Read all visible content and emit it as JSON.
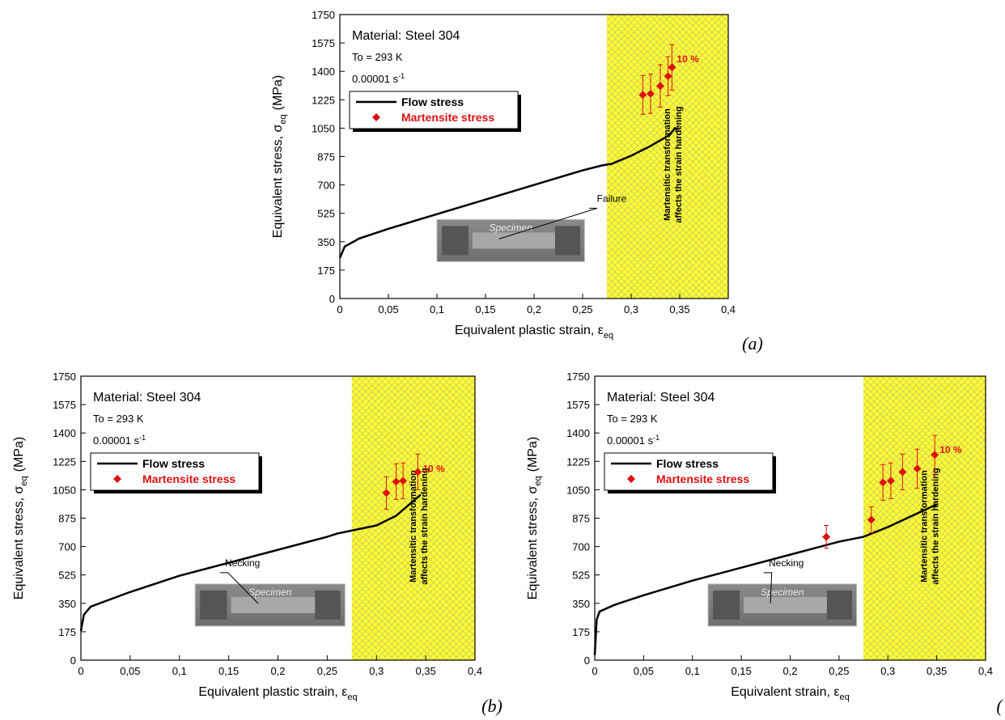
{
  "chart_data": [
    {
      "type": "line",
      "panel": "(a)",
      "material": "Material: Steel 304",
      "temperature": "To = 293 K",
      "rate": "0.00001 s",
      "rate_exponent": "-1",
      "xlabel": "Equivalent plastic strain, ε",
      "xlabel_sub": "eq",
      "ylabel": "Equivalent stress, σ",
      "ylabel_sub": "eq",
      "ylabel_unit": "(MPa)",
      "region_x": [
        0.275,
        0.4
      ],
      "region_color": "#ffff33",
      "region_label": [
        "Martensitic transformation",
        "affects the strain hardening"
      ],
      "point_label": "10 %",
      "callout": "Failure",
      "inset_label": "Specimen",
      "legend": "upper left",
      "xlim": [
        0,
        0.4
      ],
      "ylim": [
        0,
        1750
      ],
      "xticks": [
        0,
        {
          "value": 0.05,
          "label": "0,05"
        },
        {
          "value": 0.1,
          "label": "0,1"
        },
        {
          "value": 0.15,
          "label": "0,15"
        },
        {
          "value": 0.2,
          "label": "0,2"
        },
        {
          "value": 0.25,
          "label": "0,25"
        },
        {
          "value": 0.3,
          "label": "0,3"
        },
        {
          "value": 0.35,
          "label": "0,35"
        },
        {
          "value": 0.4,
          "label": "0,4"
        }
      ],
      "yticks": [
        0,
        175,
        350,
        525,
        700,
        875,
        1050,
        1225,
        1400,
        1575,
        1750
      ],
      "series": [
        {
          "name": "Flow stress",
          "color": "#000000",
          "type": "line",
          "x": [
            0,
            0.005,
            0.02,
            0.05,
            0.1,
            0.15,
            0.2,
            0.25,
            0.27,
            0.28,
            0.3,
            0.32,
            0.34,
            0.345,
            0.348
          ],
          "values": [
            250,
            320,
            370,
            430,
            520,
            610,
            700,
            790,
            820,
            830,
            880,
            940,
            1010,
            1050,
            1040
          ]
        },
        {
          "name": "Martensite stress",
          "color": "#dd1111",
          "type": "scatter",
          "x": [
            0.312,
            0.32,
            0.33,
            0.338,
            0.342
          ],
          "values": [
            1255,
            1262,
            1310,
            1370,
            1425
          ],
          "errors": [
            120,
            120,
            130,
            120,
            140
          ]
        }
      ]
    },
    {
      "type": "line",
      "panel": "(b)",
      "material": "Material: Steel 304",
      "temperature": "To = 293 K",
      "rate": "0.00001 s",
      "rate_exponent": "-1",
      "xlabel": "Equivalent plastic strain, ε",
      "xlabel_sub": "eq",
      "ylabel": "Equivalent stress, σ",
      "ylabel_sub": "eq",
      "ylabel_unit": "(MPa)",
      "region_x": [
        0.275,
        0.4
      ],
      "region_color": "#ffff33",
      "region_label": [
        "Martensitic transformation",
        "affects the strain hardening"
      ],
      "point_label": "10 %",
      "callout": "Necking",
      "inset_label": "Specimen",
      "legend": "upper left",
      "xlim": [
        0,
        0.4
      ],
      "ylim": [
        0,
        1750
      ],
      "xticks": [
        0,
        {
          "value": 0.05,
          "label": "0,05"
        },
        {
          "value": 0.1,
          "label": "0,1"
        },
        {
          "value": 0.15,
          "label": "0,15"
        },
        {
          "value": 0.2,
          "label": "0,2"
        },
        {
          "value": 0.25,
          "label": "0,25"
        },
        {
          "value": 0.3,
          "label": "0,3"
        },
        {
          "value": 0.35,
          "label": "0,35"
        },
        {
          "value": 0.4,
          "label": "0,4"
        }
      ],
      "yticks": [
        0,
        175,
        350,
        525,
        700,
        875,
        1050,
        1225,
        1400,
        1575,
        1750
      ],
      "series": [
        {
          "name": "Flow stress",
          "color": "#000000",
          "type": "line",
          "x": [
            0,
            0.003,
            0.01,
            0.05,
            0.1,
            0.15,
            0.2,
            0.25,
            0.26,
            0.3,
            0.32,
            0.345
          ],
          "values": [
            180,
            280,
            330,
            420,
            520,
            600,
            680,
            760,
            780,
            830,
            890,
            1020
          ]
        },
        {
          "name": "Martensite stress",
          "color": "#dd1111",
          "type": "scatter",
          "x": [
            0.31,
            0.32,
            0.327,
            0.342
          ],
          "values": [
            1030,
            1100,
            1105,
            1160
          ],
          "errors": [
            100,
            110,
            110,
            110
          ]
        }
      ]
    },
    {
      "type": "line",
      "panel": "(",
      "material": "Material: Steel 304",
      "temperature": "To = 293 K",
      "rate": "0.00001 s",
      "rate_exponent": "-1",
      "xlabel": "Equivalent strain, ε",
      "xlabel_sub": "eq",
      "ylabel": "Equivalent stress, σ",
      "ylabel_sub": "eq",
      "ylabel_unit": "(MPa)",
      "region_x": [
        0.275,
        0.4
      ],
      "region_color": "#ffff33",
      "region_label": [
        "Martensitic transformation",
        "affects the strain hardening"
      ],
      "point_label": "10 %",
      "callout": "Necking",
      "inset_label": "Specimen",
      "legend": "upper left",
      "xlim": [
        0,
        0.4
      ],
      "ylim": [
        0,
        1750
      ],
      "xticks": [
        0,
        {
          "value": 0.05,
          "label": "0,05"
        },
        {
          "value": 0.1,
          "label": "0,1"
        },
        {
          "value": 0.15,
          "label": "0,15"
        },
        {
          "value": 0.2,
          "label": "0,2"
        },
        {
          "value": 0.25,
          "label": "0,25"
        },
        {
          "value": 0.3,
          "label": "0,3"
        },
        {
          "value": 0.35,
          "label": "0,35"
        },
        {
          "value": 0.4,
          "label": "0,4"
        }
      ],
      "yticks": [
        0,
        175,
        350,
        525,
        700,
        875,
        1050,
        1225,
        1400,
        1575,
        1750
      ],
      "series": [
        {
          "name": "Flow stress",
          "color": "#000000",
          "type": "line",
          "x": [
            0,
            0.002,
            0.005,
            0.02,
            0.05,
            0.1,
            0.15,
            0.2,
            0.25,
            0.275,
            0.3,
            0.35
          ],
          "values": [
            30,
            250,
            300,
            340,
            400,
            490,
            570,
            650,
            730,
            760,
            820,
            960
          ]
        },
        {
          "name": "Martensite stress",
          "color": "#dd1111",
          "type": "scatter",
          "x": [
            0.237,
            0.283,
            0.295,
            0.303,
            0.315,
            0.33,
            0.348
          ],
          "values": [
            760,
            865,
            1095,
            1105,
            1160,
            1180,
            1265
          ],
          "errors": [
            70,
            80,
            110,
            110,
            110,
            120,
            120
          ]
        }
      ]
    }
  ]
}
